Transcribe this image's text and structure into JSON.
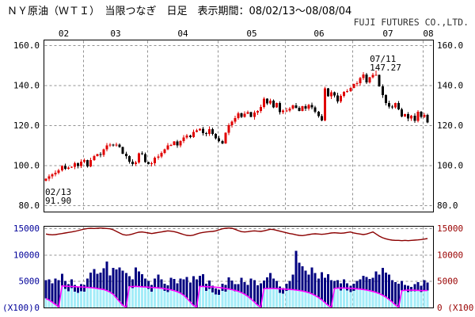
{
  "header": {
    "title": "ＮＹ原油（ＷＴＩ）　当限つなぎ　日足　表示期間：08/02/13～08/08/04",
    "company": "FUJI FUTURES CO.,LTD."
  },
  "chart_data": {
    "type": "candlestick+volume",
    "title": "NY Crude Oil (WTI) front-month continuation, daily",
    "period_label": "08/02/13～08/08/04",
    "months": [
      "02",
      "03",
      "04",
      "05",
      "06",
      "07",
      "08"
    ],
    "month_day_counts": [
      12,
      20,
      22,
      21,
      21,
      22,
      2
    ],
    "grid_color": "#909090",
    "price": {
      "ylim": [
        80,
        160
      ],
      "tick_labels": [
        "160.0",
        "140.0",
        "120.0",
        "100.0",
        "80.0"
      ],
      "tick_values": [
        160,
        140,
        120,
        100,
        80
      ],
      "axis_label_color": "#000000",
      "up_color": "#e00000",
      "down_color": "#000000",
      "first_open": 92.3,
      "closes": [
        93.3,
        94.4,
        95.5,
        96.2,
        97.4,
        99.7,
        98.2,
        98.8,
        99.2,
        100.9,
        99.6,
        101.8,
        102.5,
        99.5,
        102.6,
        104.5,
        105.5,
        105.2,
        107.9,
        109.9,
        110.3,
        109.9,
        110.2,
        109.1,
        105.7,
        104.5,
        101.8,
        100.5,
        101.4,
        105.9,
        105.6,
        101.6,
        100.6,
        100.9,
        103.8,
        104.3,
        106.2,
        108.0,
        109.9,
        110.1,
        111.8,
        110.0,
        112.0,
        113.8,
        114.9,
        114.1,
        116.7,
        117.5,
        118.3,
        116.1,
        115.6,
        118.1,
        115.6,
        113.5,
        112.0,
        110.9,
        116.3,
        120.0,
        121.8,
        123.5,
        126.0,
        124.2,
        125.8,
        126.6,
        124.1,
        126.3,
        127.1,
        129.1,
        133.2,
        130.8,
        132.2,
        128.9,
        131.0,
        126.6,
        127.4,
        127.4,
        128.3,
        129.9,
        128.8,
        127.2,
        129.5,
        128.4,
        130.1,
        128.9,
        126.8,
        124.5,
        122.4,
        138.5,
        134.4,
        136.4,
        134.9,
        131.9,
        134.6,
        136.7,
        137.0,
        138.6,
        140.6,
        141.0,
        143.6,
        145.3,
        141.4,
        143.9,
        145.1,
        145.1,
        139.5,
        135.0,
        131.1,
        129.3,
        128.9,
        131.0,
        128.0,
        124.4,
        125.5,
        123.3,
        124.7,
        122.2,
        126.8,
        124.1,
        125.1,
        121.4
      ],
      "annotations": [
        {
          "lines": [
            "02/13",
            "91.90"
          ],
          "index": 0,
          "anchor_value": 91.9,
          "placement": "below"
        },
        {
          "lines": [
            "07/11",
            "147.27"
          ],
          "index": 103,
          "anchor_value": 147.27,
          "placement": "above"
        }
      ]
    },
    "volume": {
      "ylim": [
        0,
        15500
      ],
      "tick_labels": [
        "15000",
        "10000",
        "5000",
        "0"
      ],
      "tick_values": [
        15000,
        10000,
        5000,
        0
      ],
      "unit_label": "(X100)",
      "left_axis_color": "#000099",
      "right_axis_color": "#990000",
      "colors": {
        "total_volume": "#000080",
        "front_volume": "#a4ecf8",
        "total_oi": "#8b0000",
        "front_oi": "#ff00ff"
      },
      "total_volume": [
        5200,
        5300,
        4600,
        5500,
        5200,
        6400,
        5000,
        4400,
        5300,
        4300,
        4000,
        4400,
        4300,
        5500,
        6600,
        7300,
        6400,
        6600,
        7400,
        8700,
        6100,
        7500,
        7200,
        7600,
        7000,
        6500,
        5900,
        5300,
        7600,
        6800,
        6300,
        5500,
        5000,
        4300,
        5500,
        6200,
        5300,
        4500,
        4200,
        5600,
        5400,
        4600,
        5500,
        5300,
        5800,
        4700,
        5900,
        5300,
        6000,
        6300,
        4500,
        5100,
        4100,
        3600,
        3400,
        4500,
        4300,
        5700,
        5100,
        4400,
        4400,
        5600,
        4800,
        4300,
        5500,
        5200,
        4200,
        4600,
        5100,
        5700,
        6500,
        5500,
        5000,
        4000,
        3700,
        4500,
        5000,
        6200,
        10700,
        8500,
        7800,
        7000,
        6200,
        7600,
        6500,
        5500,
        6700,
        5600,
        6300,
        5200,
        5000,
        5200,
        4600,
        5300,
        4600,
        4100,
        4500,
        5000,
        5300,
        6000,
        5800,
        5400,
        5600,
        6800,
        6200,
        7500,
        6600,
        6200,
        5200,
        4800,
        4500,
        5000,
        4300,
        4100,
        3900,
        4400,
        4800,
        4100,
        5200,
        4700
      ],
      "front_volume": [
        1700,
        1400,
        1000,
        550,
        80,
        4100,
        3500,
        3100,
        3700,
        3000,
        2800,
        3100,
        3000,
        3800,
        3750,
        3700,
        3600,
        3500,
        3400,
        3200,
        2900,
        2500,
        1800,
        1100,
        400,
        60,
        3950,
        3700,
        4000,
        3950,
        3900,
        3850,
        3500,
        3000,
        3750,
        3700,
        3650,
        3150,
        2950,
        3350,
        3200,
        3000,
        2700,
        2300,
        1750,
        1050,
        400,
        60,
        4000,
        3980,
        3150,
        3550,
        2850,
        2500,
        2400,
        3150,
        3000,
        3500,
        3400,
        3100,
        3050,
        2800,
        2500,
        2100,
        1600,
        1050,
        450,
        60,
        3550,
        3600,
        3600,
        3600,
        3500,
        2800,
        2600,
        3150,
        3400,
        3350,
        3300,
        3200,
        3100,
        3000,
        2800,
        2550,
        2250,
        1900,
        1450,
        950,
        420,
        50,
        3500,
        3650,
        3200,
        3700,
        3200,
        2900,
        3150,
        3500,
        3500,
        3400,
        3300,
        3200,
        3050,
        2850,
        2600,
        2350,
        2000,
        1550,
        1050,
        500,
        60,
        3200,
        3250,
        2900,
        3100,
        3100,
        3250,
        2900,
        3200,
        3250
      ],
      "front_oi": [
        1700,
        1400,
        1000,
        550,
        80,
        4100,
        4050,
        4000,
        3980,
        3950,
        3920,
        3900,
        3850,
        3800,
        3750,
        3700,
        3600,
        3500,
        3400,
        3200,
        2900,
        2500,
        1800,
        1100,
        400,
        60,
        3950,
        3980,
        4000,
        3960,
        3920,
        3880,
        3840,
        3800,
        3760,
        3700,
        3640,
        3560,
        3460,
        3340,
        3180,
        2980,
        2700,
        2300,
        1750,
        1050,
        400,
        60,
        4000,
        3980,
        3950,
        3920,
        3880,
        3840,
        3780,
        3700,
        3600,
        3500,
        3380,
        3240,
        3060,
        2820,
        2500,
        2100,
        1600,
        1050,
        450,
        60,
        3550,
        3600,
        3620,
        3600,
        3570,
        3540,
        3500,
        3460,
        3420,
        3370,
        3300,
        3220,
        3120,
        2980,
        2800,
        2560,
        2260,
        1900,
        1450,
        950,
        420,
        50,
        3600,
        3660,
        3700,
        3690,
        3660,
        3630,
        3590,
        3540,
        3480,
        3400,
        3300,
        3180,
        3030,
        2850,
        2620,
        2330,
        1980,
        1550,
        1050,
        500,
        60,
        3200,
        3260,
        3300,
        3290,
        3270,
        3240,
        3210,
        3190,
        3230
      ],
      "total_oi": [
        13900,
        13800,
        13750,
        13800,
        13900,
        14000,
        14100,
        14200,
        14300,
        14400,
        14550,
        14700,
        14850,
        14950,
        15000,
        14950,
        15000,
        15050,
        15000,
        14950,
        14900,
        14700,
        14400,
        14100,
        13800,
        13700,
        13750,
        13900,
        14100,
        14250,
        14300,
        14200,
        14100,
        14000,
        14100,
        14200,
        14300,
        14400,
        14500,
        14450,
        14350,
        14200,
        14000,
        13800,
        13650,
        13600,
        13700,
        13900,
        14100,
        14200,
        14300,
        14350,
        14400,
        14500,
        14700,
        14900,
        15000,
        15050,
        15000,
        14800,
        14550,
        14350,
        14300,
        14350,
        14450,
        14500,
        14450,
        14400,
        14500,
        14650,
        14800,
        14750,
        14600,
        14450,
        14300,
        14150,
        14000,
        13900,
        13750,
        13650,
        13600,
        13700,
        13800,
        13900,
        13950,
        13900,
        13850,
        13900,
        14000,
        14100,
        14150,
        14100,
        14050,
        14100,
        14200,
        14300,
        14100,
        14000,
        13900,
        13800,
        13900,
        14100,
        14300,
        13900,
        13500,
        13200,
        13000,
        12850,
        12750,
        12700,
        12700,
        12650,
        12700,
        12650,
        12700,
        12750,
        12800,
        12850,
        12950,
        13050
      ]
    }
  }
}
